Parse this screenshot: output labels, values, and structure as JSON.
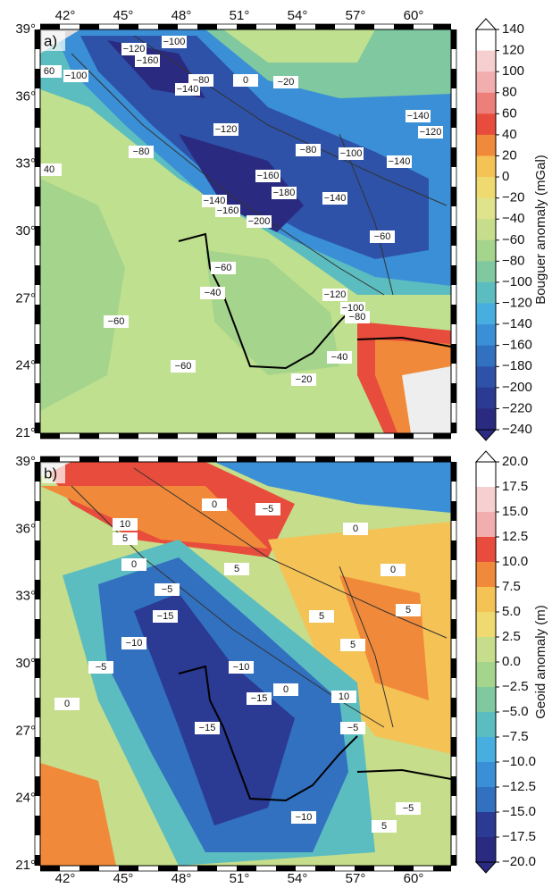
{
  "lon_ticks": [
    "42°",
    "45°",
    "48°",
    "51°",
    "54°",
    "57°",
    "60°"
  ],
  "lat_ticks": [
    "39°",
    "36°",
    "33°",
    "30°",
    "27°",
    "24°",
    "21°"
  ],
  "panels": [
    {
      "label": "a)",
      "colorbar": {
        "title": "Bouguer anomaly (mGal)",
        "ticks": [
          "140",
          "120",
          "100",
          "80",
          "60",
          "40",
          "20",
          "0",
          "−20",
          "−40",
          "−60",
          "−80",
          "−100",
          "−120",
          "−140",
          "−160",
          "−180",
          "−200",
          "−220",
          "−240"
        ]
      },
      "contour_labels": [
        "−120",
        "−160",
        "−100",
        "−100",
        "60",
        "−80",
        "0",
        "−20",
        "−140",
        "−120",
        "−140",
        "−120",
        "−80",
        "−80",
        "−100",
        "−140",
        "40",
        "−160",
        "−180",
        "−140",
        "−160",
        "−200",
        "−140",
        "−60",
        "−60",
        "−40",
        "−60",
        "−120",
        "−100",
        "−80",
        "−60",
        "−40",
        "−20"
      ]
    },
    {
      "label": "b)",
      "colorbar": {
        "title": "Geoid anomaly (m)",
        "ticks": [
          "20.0",
          "17.5",
          "15.0",
          "12.5",
          "10.0",
          "7.5",
          "5.0",
          "2.5",
          "0.0",
          "−2.5",
          "−5.0",
          "−7.5",
          "−10.0",
          "−12.5",
          "−15.0",
          "−17.5",
          "−20.0"
        ]
      },
      "contour_labels": [
        "0",
        "−5",
        "10",
        "5",
        "0",
        "0",
        "5",
        "0",
        "5",
        "−5",
        "−15",
        "5",
        "−10",
        "5",
        "−5",
        "−10",
        "0",
        "10",
        "−15",
        "−5",
        "0",
        "−15",
        "−10",
        "5",
        "−5"
      ]
    }
  ]
}
